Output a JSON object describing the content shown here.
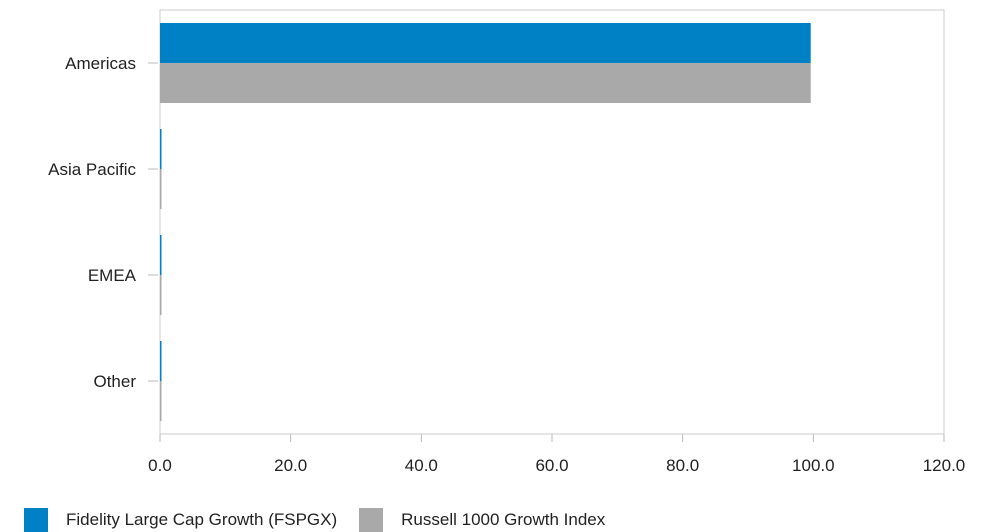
{
  "chart_data": {
    "type": "bar",
    "orientation": "horizontal",
    "categories": [
      "Americas",
      "Asia Pacific",
      "EMEA",
      "Other"
    ],
    "series": [
      {
        "name": "Fidelity Large Cap Growth (FSPGX)",
        "color": "#0081c6",
        "values": [
          99.6,
          0.2,
          0.2,
          0.2
        ]
      },
      {
        "name": "Russell 1000 Growth Index",
        "color": "#a9a9a9",
        "values": [
          99.6,
          0.2,
          0.2,
          0.2
        ]
      }
    ],
    "xlim": [
      0,
      120
    ],
    "xticks": [
      "0.0",
      "20.0",
      "40.0",
      "60.0",
      "80.0",
      "100.0",
      "120.0"
    ],
    "title": "",
    "xlabel": "",
    "ylabel": "",
    "grid": false,
    "legend_position": "bottom"
  }
}
